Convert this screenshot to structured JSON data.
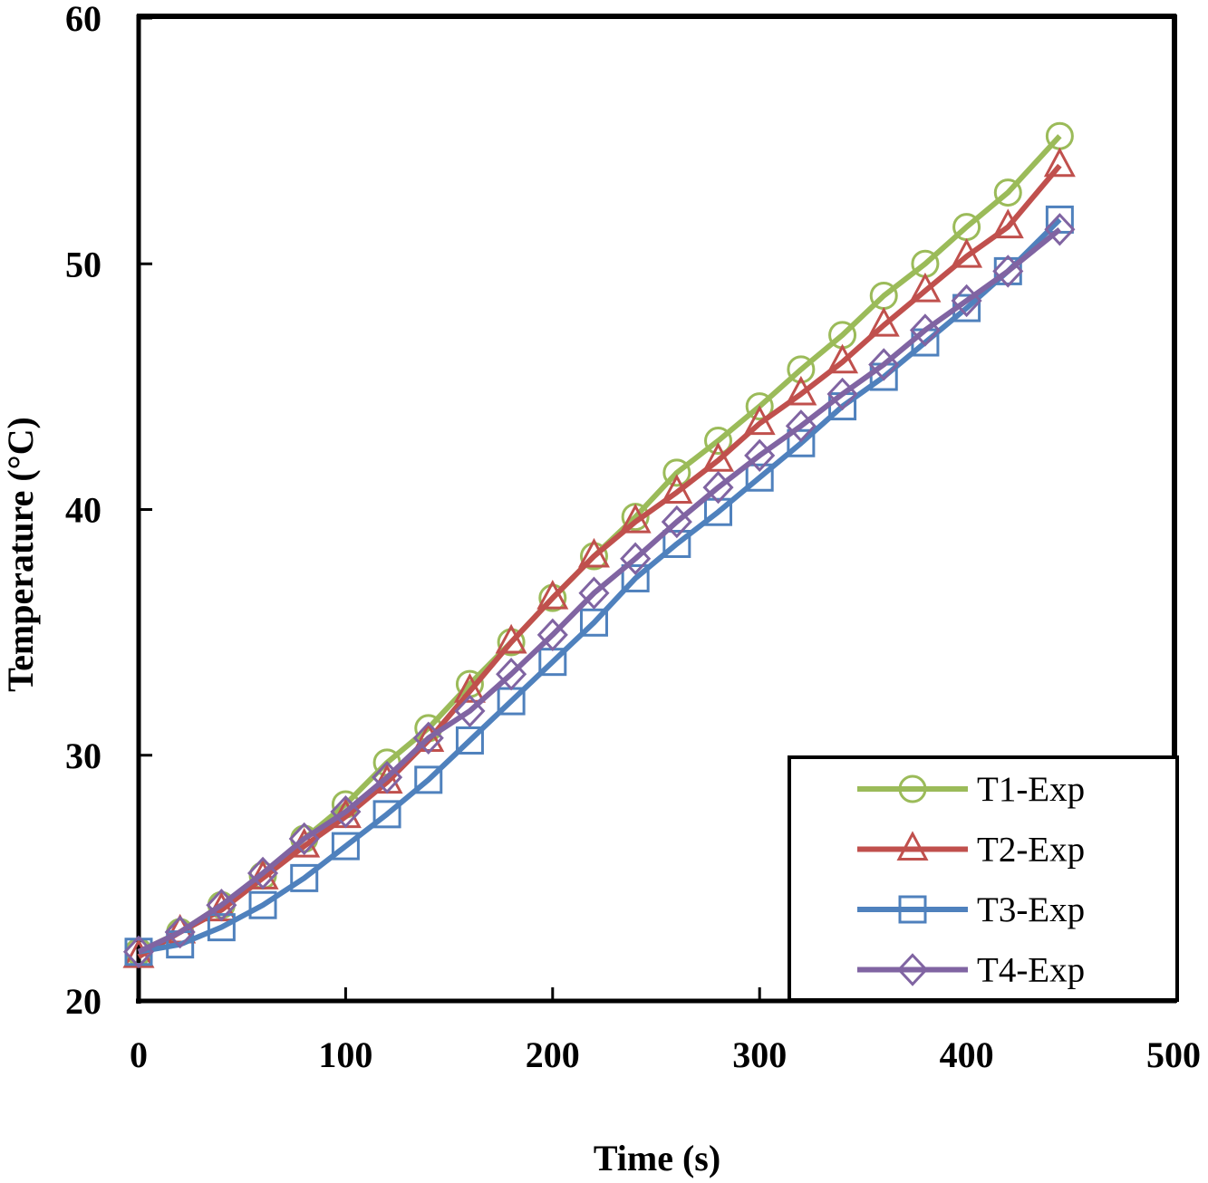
{
  "chart_data": {
    "type": "line",
    "title": "",
    "xlabel": "Time (s)",
    "ylabel": "Temperature (°C)",
    "xlim": [
      0,
      500
    ],
    "ylim": [
      20,
      60
    ],
    "xticks": [
      "0",
      "100",
      "200",
      "300",
      "400",
      "500"
    ],
    "yticks": [
      "20",
      "30",
      "40",
      "50",
      "60"
    ],
    "grid": false,
    "legend_position": "bottom-right",
    "x": [
      0,
      20,
      40,
      60,
      80,
      100,
      120,
      140,
      160,
      180,
      200,
      220,
      240,
      260,
      280,
      300,
      320,
      340,
      360,
      380,
      400,
      420,
      445
    ],
    "series": [
      {
        "name": "T1-Exp",
        "color": "#9BBB59",
        "marker": "circle",
        "values": [
          22.0,
          22.8,
          23.9,
          25.1,
          26.6,
          28.0,
          29.7,
          31.1,
          32.9,
          34.6,
          36.4,
          38.1,
          39.7,
          41.5,
          42.8,
          44.2,
          45.7,
          47.1,
          48.7,
          50.0,
          51.5,
          52.9,
          55.2
        ]
      },
      {
        "name": "T2-Exp",
        "color": "#C0504D",
        "marker": "triangle",
        "values": [
          21.8,
          22.8,
          23.7,
          25.0,
          26.3,
          27.5,
          28.9,
          30.6,
          32.6,
          34.6,
          36.4,
          38.1,
          39.5,
          40.7,
          42.0,
          43.5,
          44.7,
          46.0,
          47.5,
          48.9,
          50.3,
          51.5,
          54.0
        ]
      },
      {
        "name": "T3-Exp",
        "color": "#4F81BD",
        "marker": "square",
        "values": [
          22.0,
          22.3,
          23.0,
          23.9,
          25.0,
          26.3,
          27.6,
          29.0,
          30.6,
          32.2,
          33.8,
          35.4,
          37.2,
          38.6,
          39.9,
          41.3,
          42.7,
          44.2,
          45.4,
          46.8,
          48.2,
          49.7,
          51.8
        ]
      },
      {
        "name": "T4-Exp",
        "color": "#8064A2",
        "marker": "diamond",
        "values": [
          22.0,
          22.8,
          23.9,
          25.2,
          26.6,
          27.7,
          29.1,
          30.7,
          31.8,
          33.3,
          34.9,
          36.6,
          38.0,
          39.5,
          40.9,
          42.2,
          43.4,
          44.7,
          45.9,
          47.3,
          48.5,
          49.7,
          51.4
        ]
      }
    ]
  }
}
